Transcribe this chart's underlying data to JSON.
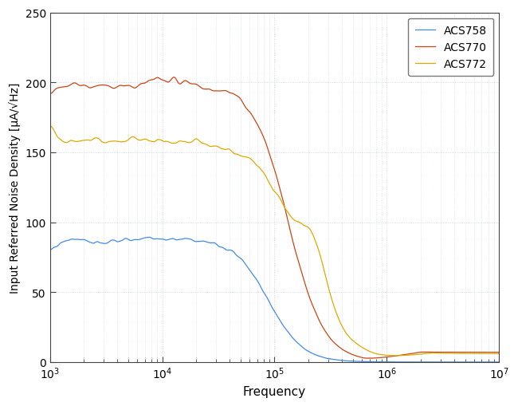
{
  "xlabel": "Frequency",
  "ylabel": "Input Referred Noise Density [μA/√Hz]",
  "xlim_log": [
    3,
    7
  ],
  "ylim": [
    0,
    250
  ],
  "yticks": [
    0,
    50,
    100,
    150,
    200,
    250
  ],
  "legend_labels": [
    "ACS758",
    "ACS770",
    "ACS772"
  ],
  "colors": {
    "ACS758": "#4488EE",
    "ACS770": "#CC4411",
    "ACS772": "#DDAA00"
  },
  "line_width": 0.9,
  "background_color": "#FFFFFF",
  "grid_color": "#BBCCDD",
  "legend_loc": "upper right",
  "figsize": [
    6.5,
    5.1
  ],
  "dpi": 100
}
